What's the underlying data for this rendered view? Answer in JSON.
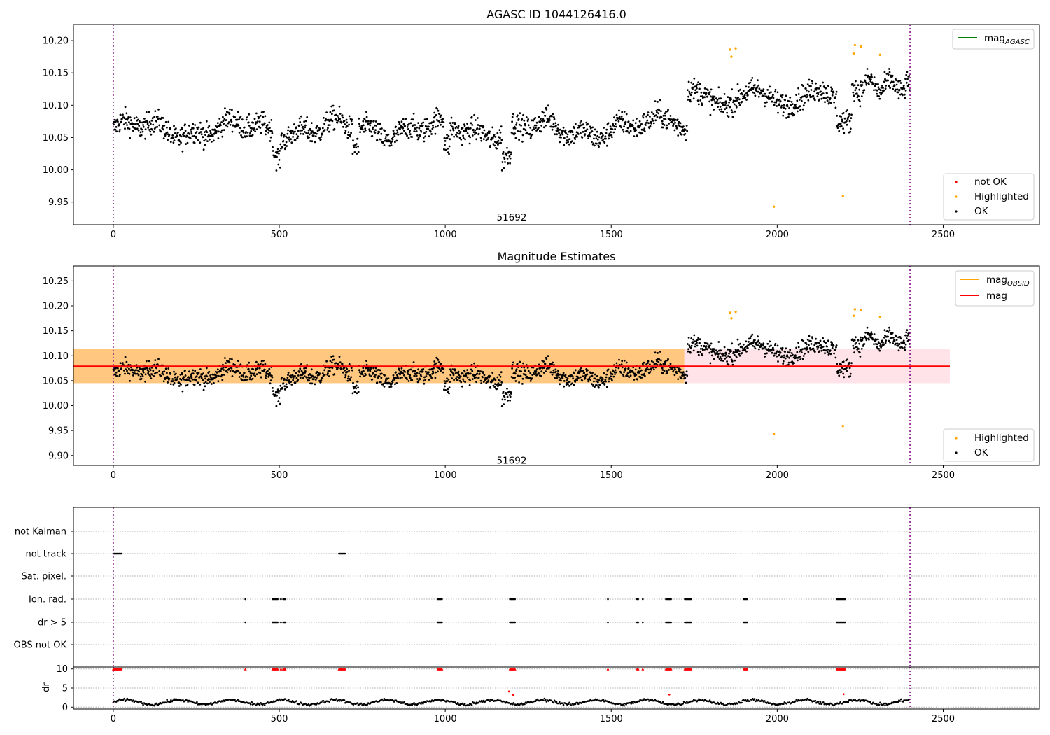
{
  "chart_data": [
    {
      "type": "scatter",
      "title": "AGASC ID 1044126416.0",
      "xlim": [
        -120,
        2790
      ],
      "ylim": [
        9.915,
        10.225
      ],
      "xticks": [
        "0",
        "500",
        "1000",
        "1500",
        "2000",
        "2500"
      ],
      "yticks": [
        "9.95",
        "10.00",
        "10.05",
        "10.10",
        "10.15",
        "10.20"
      ],
      "vlines": [
        0,
        2400
      ],
      "annotation": {
        "text": "51692",
        "x": 1200,
        "y": 9.926
      },
      "line_legend": [
        {
          "name": "mag_AGASC",
          "label": "mag",
          "sub": "AGASC",
          "color": "#008000"
        }
      ],
      "point_legend": [
        {
          "name": "not OK",
          "color": "#ff0000"
        },
        {
          "name": "Highlighted",
          "color": "#ffa500"
        },
        {
          "name": "OK",
          "color": "#000000"
        }
      ],
      "series": [
        {
          "name": "Highlighted",
          "color": "#ffa500",
          "points": [
            [
              1858,
              10.186
            ],
            [
              1862,
              10.175
            ],
            [
              1875,
              10.188
            ],
            [
              1990,
              9.943
            ],
            [
              2198,
              9.959
            ],
            [
              2230,
              10.18
            ],
            [
              2234,
              10.193
            ],
            [
              2252,
              10.191
            ],
            [
              2310,
              10.178
            ]
          ]
        }
      ]
    },
    {
      "type": "scatter",
      "title": "Magnitude Estimates",
      "xlim": [
        -120,
        2790
      ],
      "ylim": [
        9.88,
        10.28
      ],
      "xticks": [
        "0",
        "500",
        "1000",
        "1500",
        "2000",
        "2500"
      ],
      "yticks": [
        "9.90",
        "9.95",
        "10.00",
        "10.05",
        "10.10",
        "10.15",
        "10.20",
        "10.25"
      ],
      "vlines": [
        0,
        2400
      ],
      "bands": [
        {
          "name": "mag band",
          "x": [
            -120,
            2520
          ],
          "y": [
            10.045,
            10.114
          ],
          "color": "#ffc0cb"
        },
        {
          "name": "mag_OBSID band",
          "x": [
            -120,
            1720
          ],
          "y": [
            10.045,
            10.114
          ],
          "color": "#ffa500"
        }
      ],
      "hlines": [
        {
          "name": "mag",
          "y": 10.079,
          "x": [
            -120,
            2520
          ],
          "color": "#ff0000"
        }
      ],
      "annotation": {
        "text": "51692",
        "x": 1200,
        "y": 9.889
      },
      "line_legend": [
        {
          "name": "mag_OBSID",
          "label": "mag",
          "sub": "OBSID",
          "color": "#ffa500"
        },
        {
          "name": "mag",
          "label": "mag",
          "sub": "",
          "color": "#ff0000"
        }
      ],
      "point_legend": [
        {
          "name": "Highlighted",
          "color": "#ffa500"
        },
        {
          "name": "OK",
          "color": "#000000"
        }
      ],
      "series": [
        {
          "name": "Highlighted",
          "color": "#ffa500",
          "points": [
            [
              1858,
              10.186
            ],
            [
              1862,
              10.175
            ],
            [
              1875,
              10.188
            ],
            [
              1990,
              9.943
            ],
            [
              2198,
              9.959
            ],
            [
              2230,
              10.18
            ],
            [
              2234,
              10.193
            ],
            [
              2252,
              10.191
            ],
            [
              2310,
              10.178
            ]
          ]
        }
      ]
    },
    {
      "type": "scatter",
      "title": "",
      "xlim": [
        -120,
        2790
      ],
      "categories": [
        "not Kalman",
        "not track",
        "Sat. pixel.",
        "Ion. rad.",
        "dr > 5",
        "OBS not OK"
      ],
      "vlines": [
        0,
        2400
      ],
      "flags": {
        "not Kalman": [],
        "not track": [
          [
            0,
            25
          ],
          [
            680,
            700
          ]
        ],
        "Sat. pixel.": [],
        "Ion. rad.": [
          [
            398,
            400
          ],
          [
            480,
            496
          ],
          [
            505,
            507
          ],
          [
            512,
            520
          ],
          [
            978,
            990
          ],
          [
            1195,
            1212
          ],
          [
            1490,
            1492
          ],
          [
            1578,
            1582
          ],
          [
            1595,
            1597
          ],
          [
            1665,
            1680
          ],
          [
            1722,
            1740
          ],
          [
            1900,
            1910
          ],
          [
            2180,
            2205
          ]
        ],
        "dr > 5": [
          [
            398,
            400
          ],
          [
            480,
            496
          ],
          [
            505,
            507
          ],
          [
            512,
            520
          ],
          [
            978,
            990
          ],
          [
            1195,
            1212
          ],
          [
            1490,
            1492
          ],
          [
            1578,
            1582
          ],
          [
            1595,
            1597
          ],
          [
            1665,
            1680
          ],
          [
            1722,
            1740
          ],
          [
            1900,
            1910
          ],
          [
            2180,
            2205
          ]
        ],
        "OBS not OK": []
      }
    },
    {
      "type": "scatter",
      "title": "",
      "ylabel": "dr",
      "xlim": [
        -120,
        2790
      ],
      "ylim": [
        -0.5,
        10.5
      ],
      "xticks": [
        "0",
        "500",
        "1000",
        "1500",
        "2000",
        "2500"
      ],
      "yticks": [
        "0",
        "5",
        "10"
      ],
      "clipped_value": 10,
      "clipped_color": "#ff0000",
      "outliers": [
        [
          1192,
          4.1
        ],
        [
          1205,
          3.2
        ],
        [
          1675,
          3.3
        ],
        [
          2200,
          3.4
        ]
      ]
    }
  ]
}
